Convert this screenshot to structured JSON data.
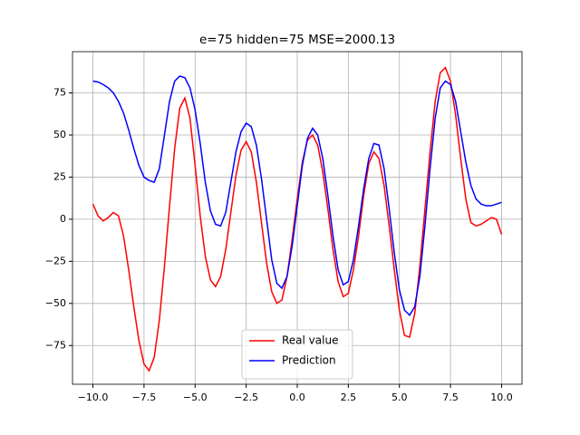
{
  "chart_data": {
    "type": "line",
    "title": "e=75 hidden=75 MSE=2000.13",
    "x": [
      -10,
      -9.75,
      -9.5,
      -9.25,
      -9,
      -8.75,
      -8.5,
      -8.25,
      -8,
      -7.75,
      -7.5,
      -7.25,
      -7,
      -6.75,
      -6.5,
      -6.25,
      -6,
      -5.75,
      -5.5,
      -5.25,
      -5,
      -4.75,
      -4.5,
      -4.25,
      -4,
      -3.75,
      -3.5,
      -3.25,
      -3,
      -2.75,
      -2.5,
      -2.25,
      -2,
      -1.75,
      -1.5,
      -1.25,
      -1,
      -0.75,
      -0.5,
      -0.25,
      0,
      0.25,
      0.5,
      0.75,
      1,
      1.25,
      1.5,
      1.75,
      2,
      2.25,
      2.5,
      2.75,
      3,
      3.25,
      3.5,
      3.75,
      4,
      4.25,
      4.5,
      4.75,
      5,
      5.25,
      5.5,
      5.75,
      6,
      6.25,
      6.5,
      6.75,
      7,
      7.25,
      7.5,
      7.75,
      8,
      8.25,
      8.5,
      8.75,
      9,
      9.25,
      9.5,
      9.75,
      10
    ],
    "series": [
      {
        "name": "Real value",
        "color": "#ff0000",
        "values": [
          9,
          2,
          -1,
          1,
          4,
          2,
          -10,
          -30,
          -52,
          -72,
          -86,
          -90,
          -82,
          -60,
          -28,
          8,
          42,
          66,
          72,
          60,
          32,
          2,
          -22,
          -36,
          -40,
          -34,
          -18,
          4,
          26,
          41,
          46,
          40,
          22,
          -2,
          -26,
          -43,
          -50,
          -48,
          -34,
          -12,
          12,
          34,
          47,
          50,
          44,
          28,
          6,
          -18,
          -37,
          -46,
          -44,
          -30,
          -10,
          14,
          33,
          40,
          36,
          20,
          -4,
          -30,
          -54,
          -69,
          -70,
          -56,
          -28,
          6,
          40,
          70,
          87,
          90,
          82,
          62,
          36,
          12,
          -2,
          -4,
          -3,
          -1,
          1,
          0,
          -9
        ]
      },
      {
        "name": "Prediction",
        "color": "#0000ff",
        "values": [
          82,
          81.5,
          80,
          78,
          75,
          70,
          63,
          53,
          42,
          32,
          25,
          23,
          22,
          30,
          50,
          70,
          82,
          85,
          84,
          78,
          65,
          45,
          22,
          5,
          -3,
          -4,
          4,
          22,
          40,
          52,
          57,
          55,
          44,
          24,
          0,
          -24,
          -38,
          -41,
          -34,
          -16,
          8,
          32,
          48,
          54,
          50,
          36,
          14,
          -10,
          -30,
          -39,
          -37,
          -24,
          -4,
          18,
          36,
          45,
          44,
          30,
          6,
          -20,
          -42,
          -54,
          -57,
          -52,
          -34,
          -4,
          30,
          60,
          78,
          82,
          80,
          70,
          52,
          34,
          20,
          12,
          9,
          8,
          8,
          9,
          10
        ]
      }
    ],
    "xlim": [
      -11,
      11
    ],
    "ylim": [
      -98,
      99.5
    ],
    "xticks": [
      {
        "value": -10,
        "label": "−10.0"
      },
      {
        "value": -7.5,
        "label": "−7.5"
      },
      {
        "value": -5,
        "label": "−5.0"
      },
      {
        "value": -2.5,
        "label": "−2.5"
      },
      {
        "value": 0,
        "label": "0.0"
      },
      2.5,
      {
        "value": 5,
        "label": "5.0"
      },
      7.5,
      {
        "value": 10,
        "label": "10.0"
      }
    ],
    "yticks": [
      {
        "value": -75,
        "label": "−75"
      },
      {
        "value": -50,
        "label": "−50"
      },
      {
        "value": -25,
        "label": "−25"
      },
      0,
      25,
      50,
      75
    ],
    "grid": true,
    "legend": "lower center"
  }
}
